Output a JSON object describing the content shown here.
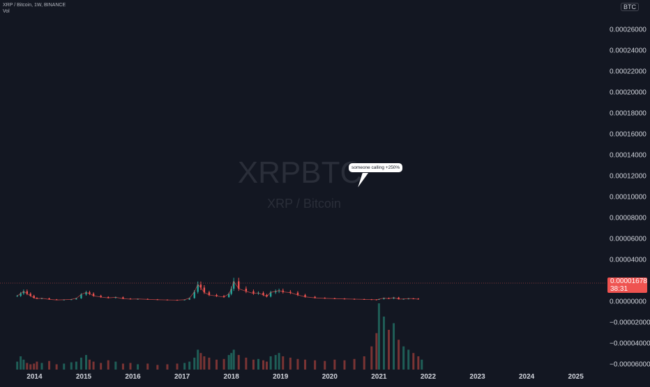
{
  "header": {
    "title": "XRP / Bitcoin, 1W, BINANCE",
    "volume_label": "Vol"
  },
  "watermark": {
    "symbol": "XRPBTC",
    "description": "XRP / Bitcoin"
  },
  "currency_badge": "BTC",
  "last_price": {
    "value": "0.00001678",
    "countdown": "38:31",
    "color": "#ef5350"
  },
  "annotation": {
    "text": "someone calling +250%"
  },
  "colors": {
    "background": "#131722",
    "up": "#26a69a",
    "down": "#ef5350",
    "volume_up": "#1f5e57",
    "volume_down": "#7a3434"
  },
  "chart_data": {
    "type": "line",
    "x_unit": "year",
    "x": [
      2013.65,
      2013.72,
      2013.78,
      2013.85,
      2013.92,
      2013.99,
      2014.05,
      2014.15,
      2014.3,
      2014.45,
      2014.6,
      2014.75,
      2014.85,
      2014.95,
      2015.05,
      2015.12,
      2015.2,
      2015.35,
      2015.5,
      2015.65,
      2015.8,
      2015.95,
      2016.1,
      2016.3,
      2016.5,
      2016.7,
      2016.9,
      2017.05,
      2017.15,
      2017.25,
      2017.32,
      2017.38,
      2017.45,
      2017.55,
      2017.7,
      2017.85,
      2017.95,
      2018.0,
      2018.05,
      2018.15,
      2018.3,
      2018.45,
      2018.55,
      2018.65,
      2018.72,
      2018.8,
      2018.9,
      2018.97,
      2019.05,
      2019.2,
      2019.35,
      2019.5,
      2019.7,
      2019.9,
      2020.1,
      2020.3,
      2020.5,
      2020.7,
      2020.85,
      2020.95,
      2021.0,
      2021.1,
      2021.2,
      2021.3,
      2021.4,
      2021.5,
      2021.6,
      2021.7,
      2021.8,
      2021.87
    ],
    "y": [
      5.1e-06,
      7.5e-06,
      9.5e-06,
      7.2e-06,
      5.2e-06,
      3.2e-06,
      2.5e-06,
      2.8e-06,
      1.8e-06,
      1.2e-06,
      1.5e-06,
      1.8e-06,
      2.8e-06,
      6.5e-06,
      8.5e-06,
      7.2e-06,
      5.2e-06,
      4e-06,
      3.2e-06,
      3.8e-06,
      2.5e-06,
      2e-06,
      2.2e-06,
      1.8e-06,
      1.5e-06,
      1.3e-06,
      1.1e-06,
      1.5e-06,
      3e-06,
      9e-06,
      1.6e-05,
      1.3e-05,
      8.5e-06,
      6e-06,
      5e-06,
      4e-06,
      7e-06,
      1.2e-05,
      1.9e-05,
      1.2e-05,
      9.5e-06,
      7.5e-06,
      8e-06,
      6e-06,
      4.5e-06,
      8.5e-06,
      9.5e-06,
      1.02e-05,
      9e-06,
      8.2e-06,
      6e-06,
      4.2e-06,
      3.2e-06,
      2.8e-06,
      2.5e-06,
      2.2e-06,
      2e-06,
      1.8e-06,
      1.6e-06,
      1.5e-06,
      2e-06,
      3e-06,
      2.5e-06,
      3.5e-06,
      2e-06,
      2.2e-06,
      2.6e-06,
      2.5e-06,
      1.9e-06,
      1.678e-05
    ],
    "volume": [
      0.12,
      0.2,
      0.15,
      0.1,
      0.08,
      0.09,
      0.12,
      0.1,
      0.13,
      0.08,
      0.09,
      0.11,
      0.12,
      0.18,
      0.22,
      0.15,
      0.12,
      0.1,
      0.14,
      0.12,
      0.09,
      0.1,
      0.08,
      0.09,
      0.07,
      0.08,
      0.09,
      0.1,
      0.12,
      0.18,
      0.3,
      0.25,
      0.2,
      0.18,
      0.15,
      0.16,
      0.22,
      0.25,
      0.3,
      0.22,
      0.18,
      0.15,
      0.16,
      0.14,
      0.12,
      0.2,
      0.22,
      0.25,
      0.2,
      0.18,
      0.16,
      0.15,
      0.14,
      0.13,
      0.15,
      0.14,
      0.16,
      0.2,
      0.35,
      0.55,
      1.0,
      0.8,
      0.6,
      0.7,
      0.45,
      0.35,
      0.3,
      0.25,
      0.2,
      0.15
    ],
    "ylim": [
      -6.3e-05,
      0.00014
    ],
    "xlim": [
      2013.3,
      2025.6
    ],
    "yticks": [
      "0.00012000",
      "0.00010000",
      "0.00008000",
      "0.00006000",
      "0.00004000",
      "0.00002000",
      "0.00000000",
      "−0.00002000",
      "−0.00004000",
      "−0.00006000"
    ],
    "ytick_values": [
      0.00012,
      0.0001,
      8e-05,
      6e-05,
      4e-05,
      2e-05,
      0.0,
      -2e-05,
      -4e-05,
      -6e-05
    ],
    "xticks": [
      "2014",
      "2015",
      "2016",
      "2017",
      "2018",
      "2019",
      "2020",
      "2021",
      "2022",
      "2023",
      "2024",
      "2025"
    ],
    "xtick_values": [
      2014,
      2015,
      2016,
      2017,
      2018,
      2019,
      2020,
      2021,
      2022,
      2023,
      2024,
      2025
    ],
    "extra_yticks_top": [
      "0.00026000",
      "0.00024000",
      "0.00022000",
      "0.00020000",
      "0.00018000",
      "0.00016000",
      "0.00014000"
    ]
  }
}
